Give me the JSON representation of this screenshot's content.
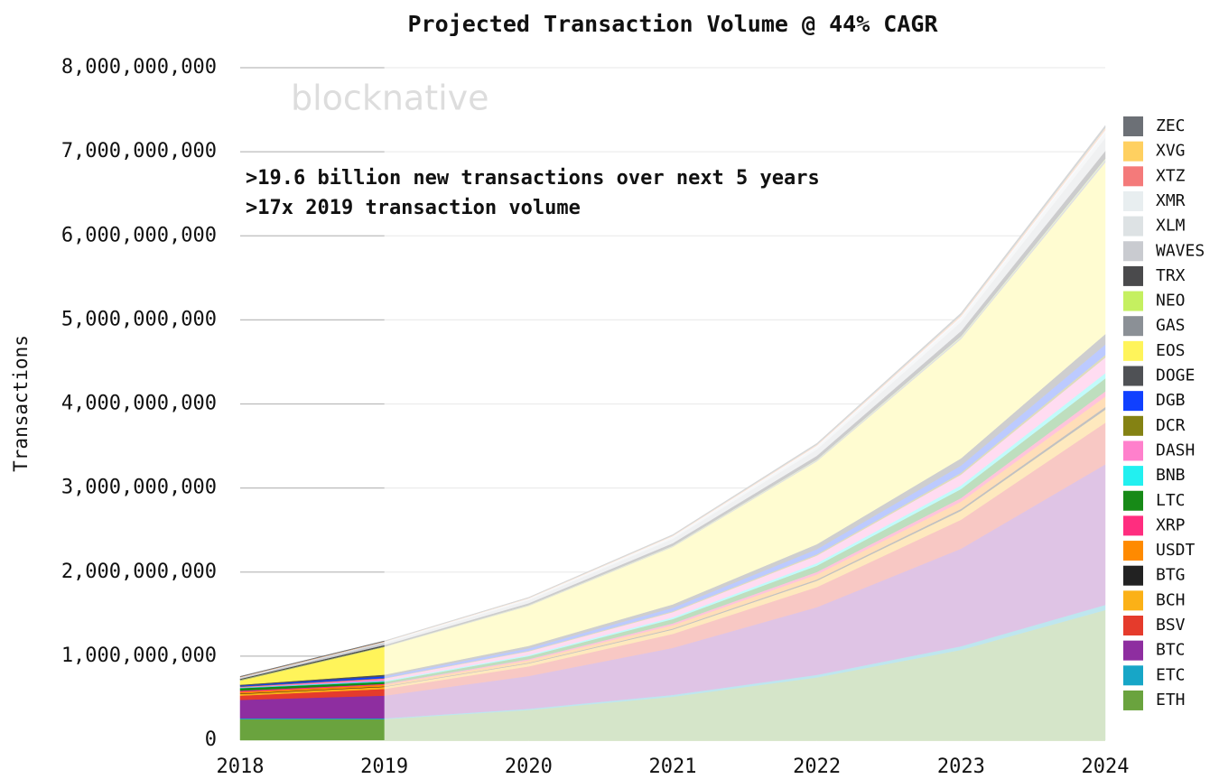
{
  "chart_data": {
    "type": "stacked_area",
    "title": "Projected Transaction Volume @ 44% CAGR",
    "y_label": "Transactions",
    "watermark": "blocknative",
    "annotations": [
      ">19.6 billion new transactions over next 5 years",
      ">17x 2019 transaction volume"
    ],
    "x": [
      2018,
      2019,
      2020,
      2021,
      2022,
      2023,
      2024
    ],
    "xlim": [
      2018,
      2024
    ],
    "xticks": [
      2018,
      2019,
      2020,
      2021,
      2022,
      2023,
      2024
    ],
    "ylim": [
      0,
      8000000000
    ],
    "yticks": [
      0,
      {
        "value": 1000000000,
        "label": "1,000,000,000"
      },
      {
        "value": 2000000000,
        "label": "2,000,000,000"
      },
      {
        "value": 3000000000,
        "label": "3,000,000,000"
      },
      {
        "value": 4000000000,
        "label": "4,000,000,000"
      },
      {
        "value": 5000000000,
        "label": "5,000,000,000"
      },
      {
        "value": 6000000000,
        "label": "6,000,000,000"
      },
      {
        "value": 7000000000,
        "label": "7,000,000,000"
      },
      {
        "value": 8000000000,
        "label": "8,000,000,000"
      }
    ],
    "grid": true,
    "legend": "right",
    "series": [
      {
        "name": "ETH",
        "color": "#6aa33e",
        "values": [
          250000000.0,
          250000000.0,
          360000000.0,
          518000000.0,
          747000000.0,
          1075000000.0,
          1548000000.0
        ]
      },
      {
        "name": "ETC",
        "color": "#17a6c7",
        "values": [
          10000000.0,
          10000000.0,
          14000000.0,
          21000000.0,
          30000000.0,
          43000000.0,
          62000000.0
        ]
      },
      {
        "name": "BTC",
        "color": "#8e2ea0",
        "values": [
          220000000.0,
          270000000.0,
          389000000.0,
          560000000.0,
          806000000.0,
          1161000000.0,
          1672000000.0
        ]
      },
      {
        "name": "BSV",
        "color": "#e53b2c",
        "values": [
          50000000.0,
          80000000.0,
          115000000.0,
          166000000.0,
          239000000.0,
          344000000.0,
          495000000.0
        ]
      },
      {
        "name": "BCH",
        "color": "#fbb117",
        "values": [
          20000000.0,
          25000000.0,
          36000000.0,
          52000000.0,
          75000000.0,
          107000000.0,
          155000000.0
        ]
      },
      {
        "name": "BTG",
        "color": "#222222",
        "values": [
          5000000.0,
          5000000.0,
          7000000.0,
          10000000.0,
          15000000.0,
          22000000.0,
          31000000.0
        ]
      },
      {
        "name": "USDT",
        "color": "#ff8a00",
        "values": [
          20000000.0,
          20000000.0,
          29000000.0,
          41000000.0,
          60000000.0,
          86000000.0,
          124000000.0
        ]
      },
      {
        "name": "XRP",
        "color": "#ff2d7f",
        "values": [
          15000000.0,
          10000000.0,
          14000000.0,
          21000000.0,
          30000000.0,
          43000000.0,
          62000000.0
        ]
      },
      {
        "name": "LTC",
        "color": "#178a17",
        "values": [
          30000000.0,
          25000000.0,
          36000000.0,
          52000000.0,
          75000000.0,
          107000000.0,
          155000000.0
        ]
      },
      {
        "name": "BNB",
        "color": "#22f0f0",
        "values": [
          5000000.0,
          10000000.0,
          14000000.0,
          21000000.0,
          30000000.0,
          43000000.0,
          62000000.0
        ]
      },
      {
        "name": "DASH",
        "color": "#ff80cc",
        "values": [
          10000000.0,
          30000000.0,
          43000000.0,
          62000000.0,
          90000000.0,
          129000000.0,
          186000000.0
        ]
      },
      {
        "name": "DCR",
        "color": "#848213",
        "values": [
          5000000.0,
          5000000.0,
          7000000.0,
          10000000.0,
          15000000.0,
          22000000.0,
          31000000.0
        ]
      },
      {
        "name": "DGB",
        "color": "#1040ff",
        "values": [
          10000000.0,
          20000000.0,
          29000000.0,
          41000000.0,
          60000000.0,
          86000000.0,
          124000000.0
        ]
      },
      {
        "name": "DOGE",
        "color": "#4f5155",
        "values": [
          10000000.0,
          20000000.0,
          29000000.0,
          41000000.0,
          60000000.0,
          86000000.0,
          124000000.0
        ]
      },
      {
        "name": "EOS",
        "color": "#fff45a",
        "values": [
          50000000.0,
          330000000.0,
          475000000.0,
          683000000.0,
          987000000.0,
          1419000000.0,
          2043000000.0
        ]
      },
      {
        "name": "GAS",
        "color": "#8b9096",
        "values": [
          5000000.0,
          5000000.0,
          7000000.0,
          10000000.0,
          15000000.0,
          22000000.0,
          31000000.0
        ]
      },
      {
        "name": "NEO",
        "color": "#c5f060",
        "values": [
          5000000.0,
          2000000.0,
          3000000.0,
          4000000.0,
          6000000.0,
          9000000.0,
          12000000.0
        ]
      },
      {
        "name": "TRX",
        "color": "#4a4a4c",
        "values": [
          10000000.0,
          15000000.0,
          22000000.0,
          31000000.0,
          45000000.0,
          65000000.0,
          93000000.0
        ]
      },
      {
        "name": "WAVES",
        "color": "#c9cbd0",
        "values": [
          10000000.0,
          25000000.0,
          36000000.0,
          52000000.0,
          75000000.0,
          107000000.0,
          155000000.0
        ]
      },
      {
        "name": "XLM",
        "color": "#dde2e4",
        "values": [
          5000000.0,
          10000000.0,
          14000000.0,
          21000000.0,
          30000000.0,
          43000000.0,
          62000000.0
        ]
      },
      {
        "name": "XMR",
        "color": "#e8eef0",
        "values": [
          5000000.0,
          5000000.0,
          7000000.0,
          10000000.0,
          15000000.0,
          22000000.0,
          31000000.0
        ]
      },
      {
        "name": "XTZ",
        "color": "#f47a7a",
        "values": [
          2000000.0,
          2000000.0,
          3000000.0,
          4000000.0,
          6000000.0,
          9000000.0,
          12000000.0
        ]
      },
      {
        "name": "XVG",
        "color": "#ffd060",
        "values": [
          2000000.0,
          2000000.0,
          3000000.0,
          4000000.0,
          6000000.0,
          9000000.0,
          12000000.0
        ]
      },
      {
        "name": "ZEC",
        "color": "#6c7076",
        "values": [
          5000000.0,
          5000000.0,
          7000000.0,
          10000000.0,
          15000000.0,
          22000000.0,
          31000000.0
        ]
      }
    ]
  }
}
